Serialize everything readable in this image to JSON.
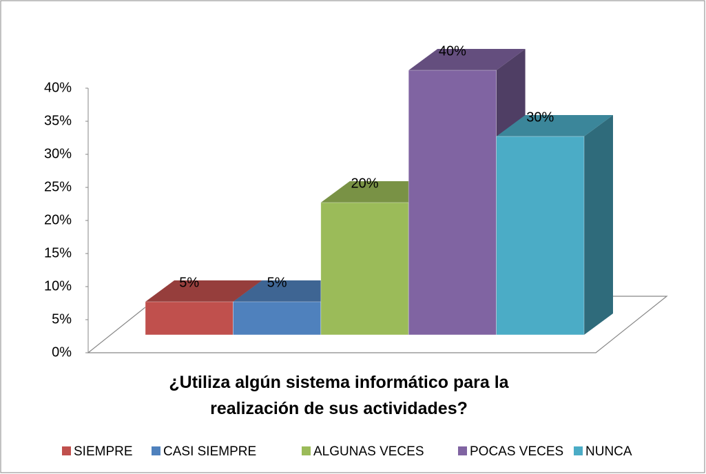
{
  "chart_data": {
    "type": "bar3d",
    "title": "¿Utiliza algún sistema informático para la realización de sus actividades?",
    "categories": [
      "SIEMPRE",
      "CASI SIEMPRE",
      "ALGUNAS VECES",
      "POCAS VECES",
      "NUNCA"
    ],
    "values": [
      5,
      5,
      20,
      40,
      30
    ],
    "value_labels": [
      "5%",
      "5%",
      "20%",
      "40%",
      "30%"
    ],
    "colors": [
      "#c0504d",
      "#4f81bd",
      "#9bbb59",
      "#8064a2",
      "#4bacc6"
    ],
    "ylim": [
      0,
      40
    ],
    "yticks": [
      {
        "value": 0,
        "label": "0%"
      },
      {
        "value": 5,
        "label": "5%"
      },
      {
        "value": 10,
        "label": "10%"
      },
      {
        "value": 15,
        "label": "15%"
      },
      {
        "value": 20,
        "label": "20%"
      },
      {
        "value": 25,
        "label": "25%"
      },
      {
        "value": 30,
        "label": "30%"
      },
      {
        "value": 35,
        "label": "35%"
      },
      {
        "value": 40,
        "label": "40%"
      }
    ],
    "legend": "bottom"
  }
}
